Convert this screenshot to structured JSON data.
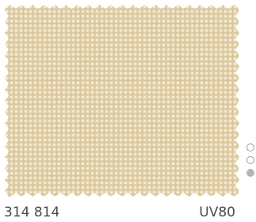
{
  "swatch": {
    "code": "314 814",
    "rating": "UV80"
  }
}
